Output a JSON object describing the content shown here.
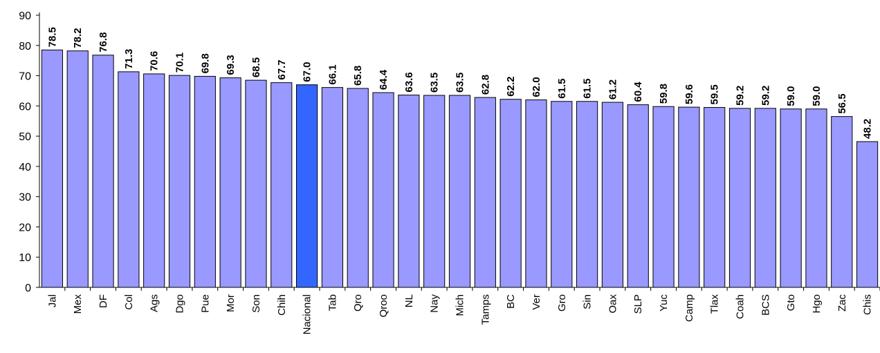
{
  "chart_data": {
    "type": "bar",
    "title": "",
    "xlabel": "",
    "ylabel": "",
    "ylim": [
      0,
      90
    ],
    "yticks": [
      0,
      10,
      20,
      30,
      40,
      50,
      60,
      70,
      80,
      90
    ],
    "grid": false,
    "legend": "none",
    "categories": [
      "Jal",
      "Mex",
      "DF",
      "Col",
      "Ags",
      "Dgo",
      "Pue",
      "Mor",
      "Son",
      "Chih",
      "Nacional",
      "Tab",
      "Qro",
      "Qroo",
      "NL",
      "Nay",
      "Mich",
      "Tamps",
      "BC",
      "Ver",
      "Gro",
      "Sin",
      "Oax",
      "SLP",
      "Yuc",
      "Camp",
      "Tlax",
      "Coah",
      "BCS",
      "Gto",
      "Hgo",
      "Zac",
      "Chis"
    ],
    "values": [
      78.5,
      78.2,
      76.8,
      71.3,
      70.6,
      70.1,
      69.8,
      69.3,
      68.5,
      67.7,
      67.0,
      66.1,
      65.8,
      64.4,
      63.6,
      63.5,
      63.5,
      62.8,
      62.2,
      62.0,
      61.5,
      61.5,
      61.2,
      60.4,
      59.8,
      59.6,
      59.5,
      59.2,
      59.2,
      59.0,
      59.0,
      56.5,
      48.2
    ],
    "value_labels": [
      "78.5",
      "78.2",
      "76.8",
      "71.3",
      "70.6",
      "70.1",
      "69.8",
      "69.3",
      "68.5",
      "67.7",
      "67.0",
      "66.1",
      "65.8",
      "64.4",
      "63.6",
      "63.5",
      "63.5",
      "62.8",
      "62.2",
      "62.0",
      "61.5",
      "61.5",
      "61.2",
      "60.4",
      "59.8",
      "59.6",
      "59.5",
      "59.2",
      "59.2",
      "59.0",
      "59.0",
      "56.5",
      "48.2"
    ],
    "highlight_category": "Nacional",
    "colors": {
      "bar": "#9999ff",
      "highlight": "#3366ff",
      "outline": "#000000"
    }
  }
}
